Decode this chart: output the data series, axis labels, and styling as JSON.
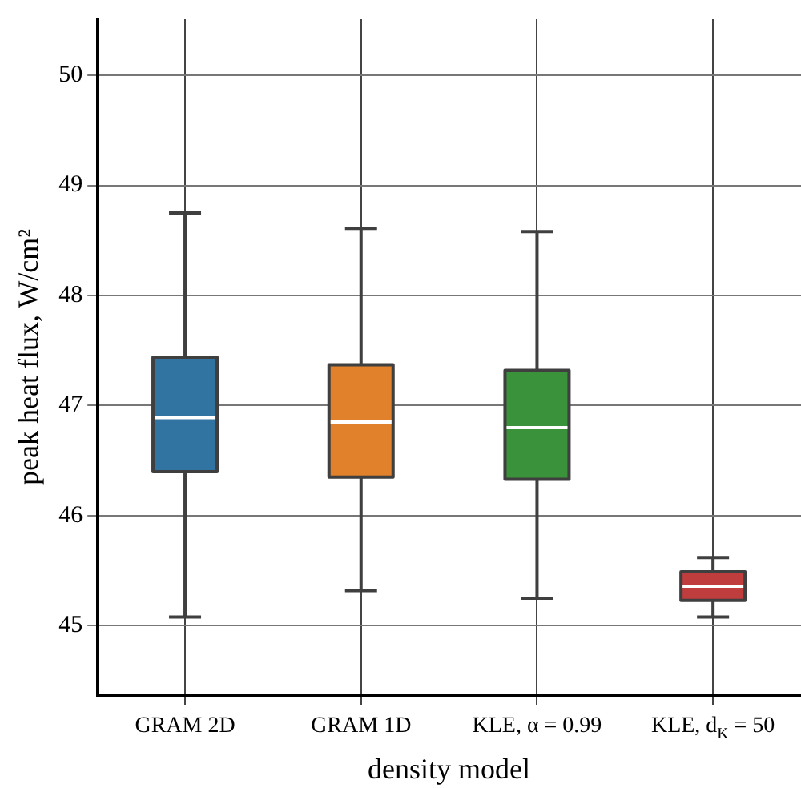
{
  "chart_data": {
    "type": "box",
    "xlabel": "density model",
    "ylabel": "peak heat flux, W/cm²",
    "categories": [
      "GRAM 2D",
      "GRAM 1D",
      "KLE, α = 0.99",
      "KLE, d$_{K}$ = 50"
    ],
    "colors": [
      "#3274a1",
      "#e1812c",
      "#3a923a",
      "#c03d3e"
    ],
    "boxes": [
      {
        "low": 45.08,
        "q1": 46.4,
        "median": 46.89,
        "q3": 47.44,
        "high": 48.75
      },
      {
        "low": 45.32,
        "q1": 46.35,
        "median": 46.85,
        "q3": 47.37,
        "high": 48.61
      },
      {
        "low": 45.25,
        "q1": 46.33,
        "median": 46.8,
        "q3": 47.32,
        "high": 48.58
      },
      {
        "low": 45.08,
        "q1": 45.23,
        "median": 45.36,
        "q3": 45.49,
        "high": 45.62
      }
    ],
    "ylim": [
      44.37,
      50.51
    ],
    "yticks": [
      45,
      46,
      47,
      48,
      49,
      50
    ],
    "grid": true,
    "legend": false
  }
}
